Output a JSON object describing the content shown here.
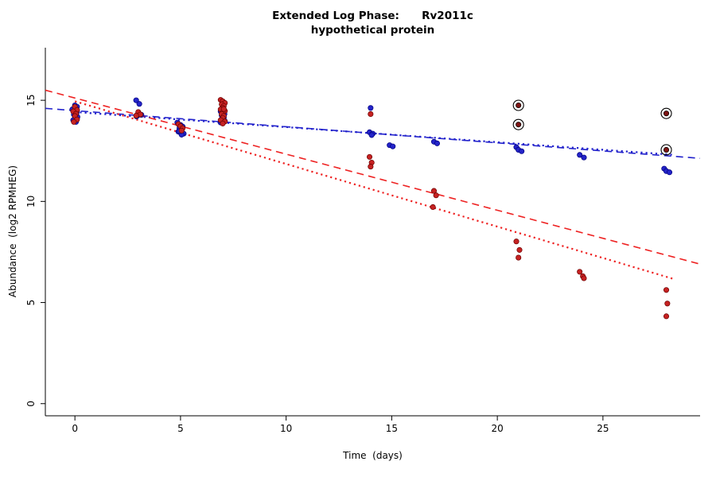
{
  "title": {
    "line1": "Extended Log Phase:      Rv2011c",
    "line2": "hypothetical protein"
  },
  "chart_data": {
    "type": "scatter",
    "xlabel": "Time  (days)",
    "ylabel": "Abundance  (log2 RPMHEG)",
    "xlim": [
      -1.4,
      29.6
    ],
    "ylim": [
      -0.6,
      17.6
    ],
    "xticks": [
      0,
      5,
      10,
      15,
      20,
      25
    ],
    "yticks": [
      0,
      5,
      10,
      15
    ],
    "grid": false,
    "legend": "none",
    "point_radius": 3.2,
    "series": [
      {
        "name": "condition-blue",
        "color": "#2424c8",
        "stroke": "#000080",
        "points": [
          [
            -0.12,
            14.55
          ],
          [
            0,
            14.75
          ],
          [
            0.05,
            14.62
          ],
          [
            0.1,
            14.5
          ],
          [
            0,
            14.45
          ],
          [
            0.08,
            14.38
          ],
          [
            -0.05,
            14.3
          ],
          [
            0.12,
            14.18
          ],
          [
            0,
            14.1
          ],
          [
            -0.08,
            14.02
          ],
          [
            0.05,
            13.93
          ],
          [
            0.1,
            14.68
          ],
          [
            2.9,
            15.0
          ],
          [
            3.05,
            14.82
          ],
          [
            3,
            14.38
          ],
          [
            3.15,
            14.28
          ],
          [
            2.92,
            14.2
          ],
          [
            4.85,
            13.9
          ],
          [
            5,
            13.78
          ],
          [
            5.1,
            13.7
          ],
          [
            4.95,
            13.62
          ],
          [
            5.05,
            13.52
          ],
          [
            4.9,
            13.45
          ],
          [
            5,
            13.4
          ],
          [
            5.15,
            13.35
          ],
          [
            5.05,
            13.3
          ],
          [
            4.95,
            13.48
          ],
          [
            6.9,
            14.45
          ],
          [
            7,
            14.4
          ],
          [
            7.08,
            14.32
          ],
          [
            6.95,
            14.25
          ],
          [
            7.05,
            14.15
          ],
          [
            7,
            14.05
          ],
          [
            7.1,
            13.97
          ],
          [
            6.9,
            13.9
          ],
          [
            14,
            14.62
          ],
          [
            13.95,
            13.42
          ],
          [
            14.1,
            13.35
          ],
          [
            14.05,
            13.28
          ],
          [
            14.9,
            12.78
          ],
          [
            15.05,
            12.72
          ],
          [
            17,
            12.95
          ],
          [
            17.15,
            12.87
          ],
          [
            20.9,
            12.68
          ],
          [
            21,
            12.55
          ],
          [
            21.15,
            12.48
          ],
          [
            23.9,
            12.3
          ],
          [
            24.1,
            12.17
          ],
          [
            27.9,
            11.62
          ],
          [
            28,
            11.5
          ],
          [
            28.15,
            11.44
          ]
        ]
      },
      {
        "name": "condition-red",
        "color": "#c62222",
        "stroke": "#6b0000",
        "points": [
          [
            0,
            14.68
          ],
          [
            0.1,
            14.52
          ],
          [
            -0.08,
            14.45
          ],
          [
            0.05,
            14.33
          ],
          [
            0,
            14.22
          ],
          [
            0.1,
            14.05
          ],
          [
            -0.05,
            13.93
          ],
          [
            3,
            14.42
          ],
          [
            3.1,
            14.3
          ],
          [
            2.9,
            14.24
          ],
          [
            4.9,
            13.82
          ],
          [
            5,
            13.72
          ],
          [
            5.1,
            13.62
          ],
          [
            5.05,
            13.5
          ],
          [
            6.9,
            15.02
          ],
          [
            7,
            14.95
          ],
          [
            7.1,
            14.87
          ],
          [
            6.95,
            14.8
          ],
          [
            7.05,
            14.72
          ],
          [
            7,
            14.62
          ],
          [
            6.9,
            14.55
          ],
          [
            7.1,
            14.47
          ],
          [
            7,
            14.4
          ],
          [
            6.95,
            14.32
          ],
          [
            7.05,
            14.22
          ],
          [
            7,
            14.12
          ],
          [
            6.9,
            14.02
          ],
          [
            7.1,
            13.95
          ],
          [
            7,
            13.85
          ],
          [
            7.05,
            14.57
          ],
          [
            14,
            14.32
          ],
          [
            13.95,
            12.2
          ],
          [
            14.05,
            11.92
          ],
          [
            14,
            11.72
          ],
          [
            17,
            10.52
          ],
          [
            17.1,
            10.3
          ],
          [
            16.95,
            9.72
          ],
          [
            20.9,
            8.02
          ],
          [
            21.05,
            7.6
          ],
          [
            21,
            7.22
          ],
          [
            23.9,
            6.52
          ],
          [
            24.05,
            6.3
          ],
          [
            24.1,
            6.2
          ],
          [
            28,
            5.62
          ],
          [
            28.05,
            4.95
          ],
          [
            28,
            4.32
          ]
        ]
      },
      {
        "name": "flagged-outliers",
        "color": "#7d1515",
        "stroke": "#000000",
        "circled": true,
        "points": [
          [
            21,
            14.75
          ],
          [
            21,
            13.8
          ],
          [
            28,
            14.35
          ],
          [
            28,
            12.55
          ]
        ]
      }
    ],
    "fit_lines": [
      {
        "name": "blue-dashed-fit",
        "color": "#2222cc",
        "dash": "9,6",
        "width": 1.6,
        "x": [
          -1.4,
          29.6
        ],
        "y": [
          14.6,
          12.13
        ]
      },
      {
        "name": "blue-dotted-fit",
        "color": "#2222cc",
        "dash": "2.2,4",
        "width": 2.2,
        "x": [
          0,
          28.4
        ],
        "y": [
          14.42,
          12.3
        ]
      },
      {
        "name": "red-dashed-fit",
        "color": "#ee2222",
        "dash": "9,6",
        "width": 1.6,
        "x": [
          -1.4,
          29.6
        ],
        "y": [
          15.5,
          6.9
        ]
      },
      {
        "name": "red-dotted-fit",
        "color": "#ee2222",
        "dash": "2.2,4",
        "width": 2.2,
        "x": [
          0,
          28.4
        ],
        "y": [
          14.95,
          6.15
        ]
      }
    ]
  }
}
